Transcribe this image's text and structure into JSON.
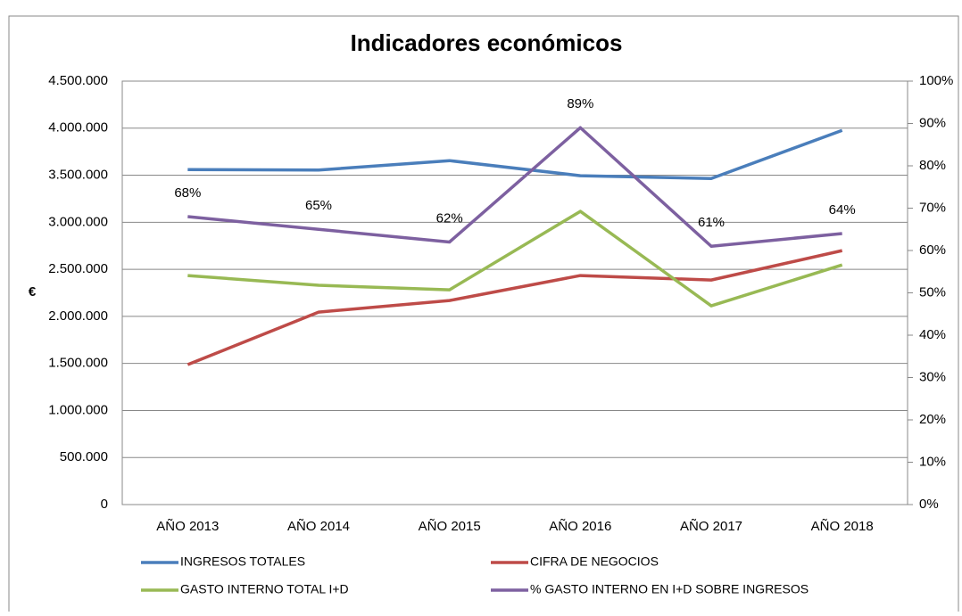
{
  "chart_data": {
    "type": "line",
    "title": "Indicadores económicos",
    "y_label": "€",
    "categories": [
      "AÑO 2013",
      "AÑO 2014",
      "AÑO 2015",
      "AÑO 2016",
      "AÑO 2017",
      "AÑO 2018"
    ],
    "series": [
      {
        "name": "INGRESOS TOTALES",
        "color": "#4a7ebb",
        "values": [
          3560000,
          3555000,
          3655000,
          3495000,
          3465000,
          3977000
        ]
      },
      {
        "name": "CIFRA DE NEGOCIOS",
        "color": "#be4b48",
        "values": [
          1487000,
          2045000,
          2168000,
          2434000,
          2386000,
          2699000
        ]
      },
      {
        "name": "GASTO INTERNO TOTAL I+D",
        "color": "#98b954",
        "values": [
          2434000,
          2330000,
          2282000,
          3116000,
          2112000,
          2547000
        ]
      },
      {
        "name": "% GASTO INTERNO EN I+D SOBRE INGRESOS",
        "color": "#7d60a0",
        "axis": "y2",
        "values": [
          68,
          65,
          62,
          89,
          61,
          64
        ],
        "value_labels": [
          "68%",
          "65%",
          "62%",
          "89%",
          "61%",
          "64%"
        ]
      }
    ],
    "ylim": [
      0,
      4500000
    ],
    "yticks": [
      0,
      {
        "value": 500000,
        "label": "500.000"
      },
      {
        "value": 1000000,
        "label": "1.000.000"
      },
      {
        "value": 1500000,
        "label": "1.500.000"
      },
      {
        "value": 2000000,
        "label": "2.000.000"
      },
      {
        "value": 2500000,
        "label": "2.500.000"
      },
      {
        "value": 3000000,
        "label": "3.000.000"
      },
      {
        "value": 3500000,
        "label": "3.500.000"
      },
      {
        "value": 4000000,
        "label": "4.000.000"
      },
      {
        "value": 4500000,
        "label": "4.500.000"
      }
    ],
    "y2lim": [
      0,
      100
    ],
    "y2ticks": [
      {
        "value": 0,
        "label": "0%"
      },
      {
        "value": 10,
        "label": "10%"
      },
      {
        "value": 20,
        "label": "20%"
      },
      {
        "value": 30,
        "label": "30%"
      },
      {
        "value": 40,
        "label": "40%"
      },
      {
        "value": 50,
        "label": "50%"
      },
      {
        "value": 60,
        "label": "60%"
      },
      {
        "value": 70,
        "label": "70%"
      },
      {
        "value": 80,
        "label": "80%"
      },
      {
        "value": 90,
        "label": "90%"
      },
      {
        "value": 100,
        "label": "100%"
      }
    ],
    "grid": true
  }
}
